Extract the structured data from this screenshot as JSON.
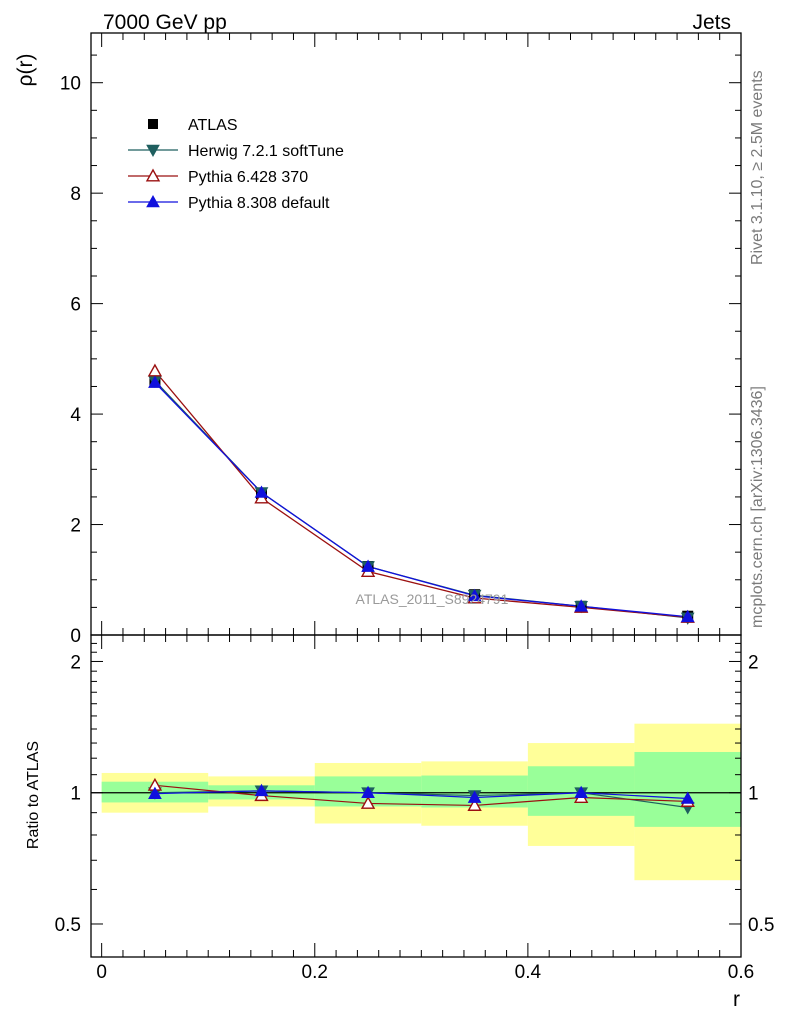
{
  "header": {
    "left": "7000 GeV pp",
    "right": "Jets"
  },
  "side_text": {
    "top": "Rivet 3.1.10, ≥ 2.5M events",
    "bottom": "mcplots.cern.ch [arXiv:1306.3436]"
  },
  "watermark": "ATLAS_2011_S8924791",
  "chart_data": [
    {
      "type": "line",
      "panel": "main",
      "ylabel": "ρ(r)",
      "ylim": [
        0,
        10.9
      ],
      "xlim": [
        -0.01,
        0.6
      ],
      "yticks": [
        0,
        2,
        4,
        6,
        8,
        10
      ],
      "ytick_labels": [
        "0",
        "2",
        "4",
        "6",
        "8",
        "10"
      ],
      "grid": false,
      "legend": "top-left",
      "x": [
        0.05,
        0.15,
        0.25,
        0.35,
        0.45,
        0.55
      ],
      "series": [
        {
          "name": "ATLAS",
          "values": [
            4.58,
            2.56,
            1.24,
            0.73,
            0.52,
            0.34
          ],
          "color": "#000000",
          "marker": "square"
        },
        {
          "name": "Herwig 7.2.1 softTune",
          "values": [
            4.6,
            2.58,
            1.24,
            0.72,
            0.52,
            0.31
          ],
          "color": "#1f5f5f",
          "marker": "triangle-down"
        },
        {
          "name": "Pythia 6.428 370",
          "values": [
            4.78,
            2.48,
            1.15,
            0.67,
            0.5,
            0.32
          ],
          "color": "#9b1010",
          "marker": "triangle-up-open"
        },
        {
          "name": "Pythia 8.308 default",
          "values": [
            4.57,
            2.58,
            1.24,
            0.71,
            0.52,
            0.33
          ],
          "color": "#1010dd",
          "marker": "triangle-up"
        }
      ]
    },
    {
      "type": "line",
      "panel": "ratio",
      "ylabel": "Ratio to ATLAS",
      "xlabel": "r",
      "ylim": [
        0.42,
        2.3
      ],
      "xlim": [
        -0.01,
        0.6
      ],
      "yticks": [
        0.5,
        1,
        2
      ],
      "ytick_labels": [
        "0.5",
        "1",
        "2"
      ],
      "xticks": [
        0,
        0.2,
        0.4,
        0.6
      ],
      "xtick_labels": [
        "0",
        "0.2",
        "0.4",
        "0.6"
      ],
      "log_y": true,
      "grid": false,
      "bands": [
        {
          "x": [
            0.0,
            0.1
          ],
          "yellow": [
            0.9,
            1.11
          ],
          "green": [
            0.95,
            1.06
          ]
        },
        {
          "x": [
            0.1,
            0.2
          ],
          "yellow": [
            0.93,
            1.09
          ],
          "green": [
            0.965,
            1.04
          ]
        },
        {
          "x": [
            0.2,
            0.3
          ],
          "yellow": [
            0.85,
            1.17
          ],
          "green": [
            0.93,
            1.09
          ]
        },
        {
          "x": [
            0.3,
            0.4
          ],
          "yellow": [
            0.84,
            1.18
          ],
          "green": [
            0.925,
            1.095
          ]
        },
        {
          "x": [
            0.4,
            0.5
          ],
          "yellow": [
            0.755,
            1.3
          ],
          "green": [
            0.885,
            1.15
          ]
        },
        {
          "x": [
            0.5,
            0.6
          ],
          "yellow": [
            0.63,
            1.44
          ],
          "green": [
            0.835,
            1.24
          ]
        }
      ],
      "x": [
        0.05,
        0.15,
        0.25,
        0.35,
        0.45,
        0.55
      ],
      "series": [
        {
          "name": "Herwig 7.2.1 softTune",
          "values": [
            1.0,
            1.01,
            1.0,
            0.985,
            1.0,
            0.925
          ],
          "color": "#1f5f5f",
          "marker": "triangle-down"
        },
        {
          "name": "Pythia 6.428 370",
          "values": [
            1.04,
            0.985,
            0.945,
            0.935,
            0.975,
            0.955
          ],
          "color": "#9b1010",
          "marker": "triangle-up-open"
        },
        {
          "name": "Pythia 8.308 default",
          "values": [
            0.995,
            1.01,
            1.0,
            0.975,
            1.0,
            0.97
          ],
          "color": "#1010dd",
          "marker": "triangle-up"
        }
      ]
    }
  ],
  "colors": {
    "band_yellow": "#ffff99",
    "band_green": "#99ff99"
  }
}
